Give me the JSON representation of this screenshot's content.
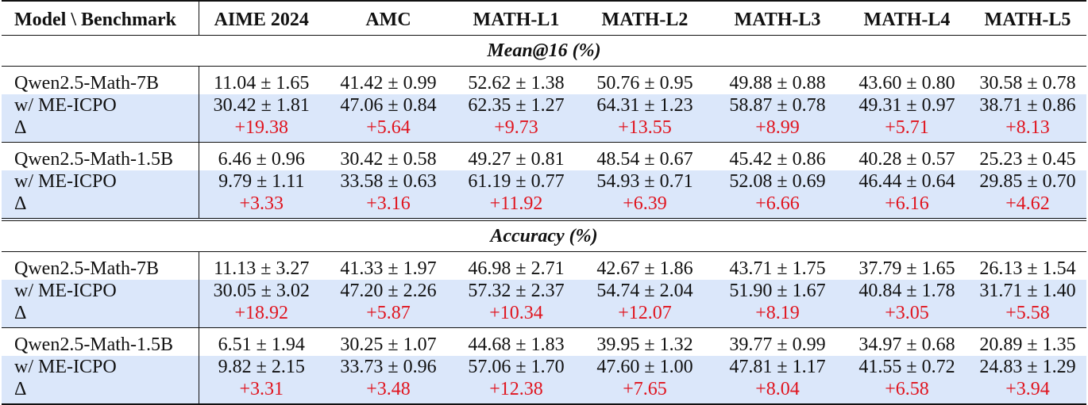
{
  "table": {
    "header": {
      "model_col": "Model \\ Benchmark",
      "benchmarks": [
        "AIME 2024",
        "AMC",
        "MATH-L1",
        "MATH-L2",
        "MATH-L3",
        "MATH-L4",
        "MATH-L5"
      ]
    },
    "sections": [
      {
        "title": "Mean@16 (%)",
        "groups": [
          {
            "base": {
              "label": "Qwen2.5-Math-7B",
              "values": [
                "11.04 ± 1.65",
                "41.42 ± 0.99",
                "52.62 ± 1.38",
                "50.76 ± 0.95",
                "49.88 ± 0.88",
                "43.60 ± 0.80",
                "30.58 ± 0.78"
              ]
            },
            "method": {
              "label": "w/ ME-ICPO",
              "values": [
                "30.42 ± 1.81",
                "47.06 ± 0.84",
                "62.35 ± 1.27",
                "64.31 ± 1.23",
                "58.87 ± 0.78",
                "49.31 ± 0.97",
                "38.71 ± 0.86"
              ]
            },
            "delta": {
              "label": "Δ",
              "values": [
                "+19.38",
                "+5.64",
                "+9.73",
                "+13.55",
                "+8.99",
                "+5.71",
                "+8.13"
              ]
            }
          },
          {
            "base": {
              "label": "Qwen2.5-Math-1.5B",
              "values": [
                "6.46 ± 0.96",
                "30.42 ± 0.58",
                "49.27 ± 0.81",
                "48.54 ± 0.67",
                "45.42 ± 0.86",
                "40.28 ± 0.57",
                "25.23 ± 0.45"
              ]
            },
            "method": {
              "label": "w/ ME-ICPO",
              "values": [
                "9.79 ± 1.11",
                "33.58 ± 0.63",
                "61.19 ± 0.77",
                "54.93 ± 0.71",
                "52.08 ± 0.69",
                "46.44 ± 0.64",
                "29.85 ± 0.70"
              ]
            },
            "delta": {
              "label": "Δ",
              "values": [
                "+3.33",
                "+3.16",
                "+11.92",
                "+6.39",
                "+6.66",
                "+6.16",
                "+4.62"
              ]
            }
          }
        ]
      },
      {
        "title": "Accuracy (%)",
        "groups": [
          {
            "base": {
              "label": "Qwen2.5-Math-7B",
              "values": [
                "11.13 ± 3.27",
                "41.33 ± 1.97",
                "46.98 ± 2.71",
                "42.67 ± 1.86",
                "43.71 ± 1.75",
                "37.79 ± 1.65",
                "26.13 ± 1.54"
              ]
            },
            "method": {
              "label": "w/ ME-ICPO",
              "values": [
                "30.05 ± 3.02",
                "47.20 ± 2.26",
                "57.32 ± 2.37",
                "54.74 ± 2.04",
                "51.90 ± 1.67",
                "40.84 ± 1.78",
                "31.71 ± 1.40"
              ]
            },
            "delta": {
              "label": "Δ",
              "values": [
                "+18.92",
                "+5.87",
                "+10.34",
                "+12.07",
                "+8.19",
                "+3.05",
                "+5.58"
              ]
            }
          },
          {
            "base": {
              "label": "Qwen2.5-Math-1.5B",
              "values": [
                "6.51 ± 1.94",
                "30.25 ± 1.07",
                "44.68 ± 1.83",
                "39.95 ± 1.32",
                "39.77 ± 0.99",
                "34.97 ± 0.68",
                "20.89 ± 1.35"
              ]
            },
            "method": {
              "label": "w/ ME-ICPO",
              "values": [
                "9.82 ± 2.15",
                "33.73 ± 0.96",
                "57.06 ± 1.70",
                "47.60 ± 1.00",
                "47.81 ± 1.17",
                "41.55 ± 0.72",
                "24.83 ± 1.29"
              ]
            },
            "delta": {
              "label": "Δ",
              "values": [
                "+3.31",
                "+3.48",
                "+12.38",
                "+7.65",
                "+8.04",
                "+6.58",
                "+3.94"
              ]
            }
          }
        ]
      }
    ]
  },
  "colors": {
    "highlight_row_bg": "#dbe7fa",
    "delta_text": "#e0141e",
    "rule": "#111111"
  }
}
